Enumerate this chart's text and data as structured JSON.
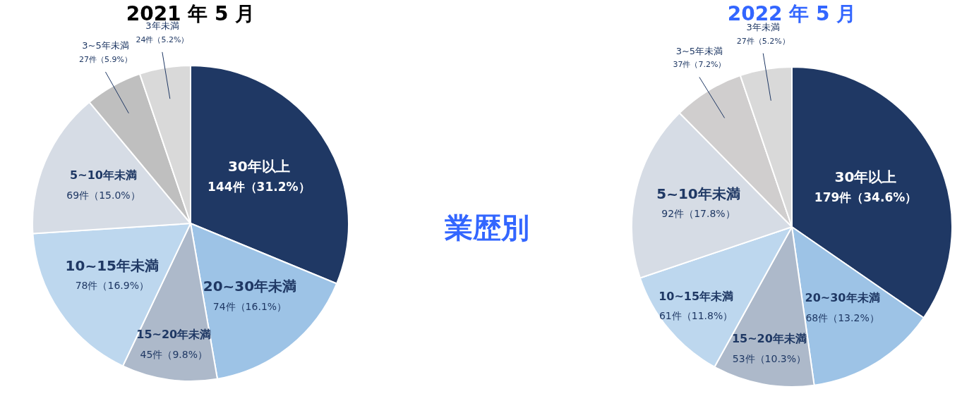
{
  "chart_data": [
    {
      "type": "pie",
      "title": "2021 年 5 月",
      "categories": [
        "30年以上",
        "20~30年未満",
        "15~20年未満",
        "10~15年未満",
        "5~10年未満",
        "3~5年未満",
        "3年未満"
      ],
      "values": [
        144,
        74,
        45,
        78,
        69,
        27,
        24
      ],
      "value_labels": [
        "144件（31.2%）",
        "74件（16.1%）",
        "45件（9.8%）",
        "78件（16.9%）",
        "69件（15.0%）",
        "27件（5.9%）",
        "24件（5.2%）"
      ],
      "colors": [
        "#1f3864",
        "#9dc3e6",
        "#adb9ca",
        "#bdd7ee",
        "#d6dce5",
        "#bfbfbf",
        "#d9d9d9"
      ]
    },
    {
      "type": "other",
      "title": "業歴別"
    },
    {
      "type": "pie",
      "title": "2022 年 5 月",
      "categories": [
        "30年以上",
        "20~30年未満",
        "15~20年未満",
        "10~15年未満",
        "5~10年未満",
        "3~5年未満",
        "3年未満"
      ],
      "values": [
        179,
        68,
        53,
        61,
        92,
        37,
        27
      ],
      "value_labels": [
        "179件（34.6%）",
        "68件（13.2%）",
        "53件（10.3%）",
        "61件（11.8%）",
        "92件（17.8%）",
        "37件（7.2%）",
        "27件（5.2%）"
      ],
      "colors": [
        "#1f3864",
        "#9dc3e6",
        "#adb9ca",
        "#bdd7ee",
        "#d6dce5",
        "#d0cece",
        "#d9d9d9"
      ]
    }
  ]
}
